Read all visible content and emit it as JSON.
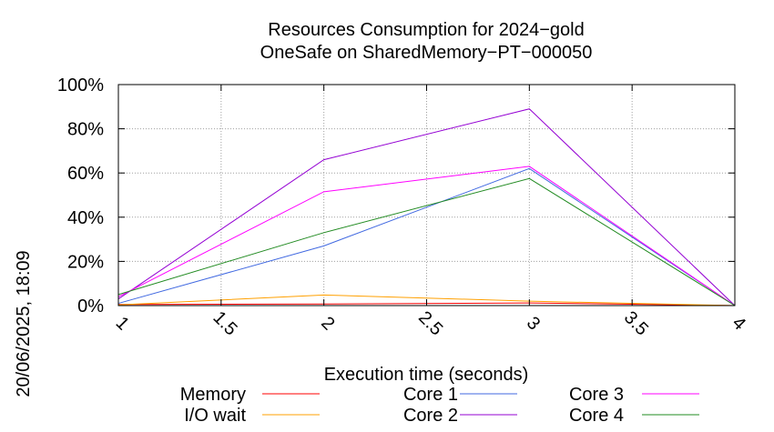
{
  "chart_data": {
    "type": "line",
    "title": "Resources Consumption for 2024−gold",
    "subtitle": "OneSafe on SharedMemory−PT−000050",
    "xlabel": "Execution time (seconds)",
    "ylabel": "",
    "side_label": "20/06/2025, 18:09",
    "xlim": [
      1,
      4
    ],
    "ylim": [
      0,
      100
    ],
    "x_ticks": [
      1,
      1.5,
      2,
      2.5,
      3,
      3.5,
      4
    ],
    "x_tick_labels": [
      "1",
      "1.5",
      "2",
      "2.5",
      "3",
      "3.5",
      "4"
    ],
    "y_ticks": [
      0,
      20,
      40,
      60,
      80,
      100
    ],
    "y_tick_labels": [
      "0%",
      "20%",
      "40%",
      "60%",
      "80%",
      "100%"
    ],
    "grid": true,
    "legend_position": "bottom",
    "series": [
      {
        "name": "Memory",
        "color": "#ff0000",
        "x": [
          1,
          2,
          3,
          4
        ],
        "values": [
          0.5,
          0.7,
          1.2,
          0
        ]
      },
      {
        "name": "I/O wait",
        "color": "#ffa000",
        "x": [
          1,
          2,
          3,
          4
        ],
        "values": [
          0.3,
          4.8,
          2.0,
          0
        ]
      },
      {
        "name": "Core 1",
        "color": "#4169e1",
        "x": [
          1,
          2,
          3,
          4
        ],
        "values": [
          1,
          27,
          62,
          0
        ]
      },
      {
        "name": "Core 2",
        "color": "#9400d3",
        "x": [
          1,
          2,
          3,
          4
        ],
        "values": [
          3,
          66,
          89,
          0
        ]
      },
      {
        "name": "Core 3",
        "color": "#ff00ff",
        "x": [
          1,
          2,
          3,
          4
        ],
        "values": [
          4,
          51.5,
          63,
          0
        ]
      },
      {
        "name": "Core 4",
        "color": "#228b22",
        "x": [
          1,
          2,
          3,
          4
        ],
        "values": [
          5,
          33,
          57.5,
          0
        ]
      }
    ]
  }
}
